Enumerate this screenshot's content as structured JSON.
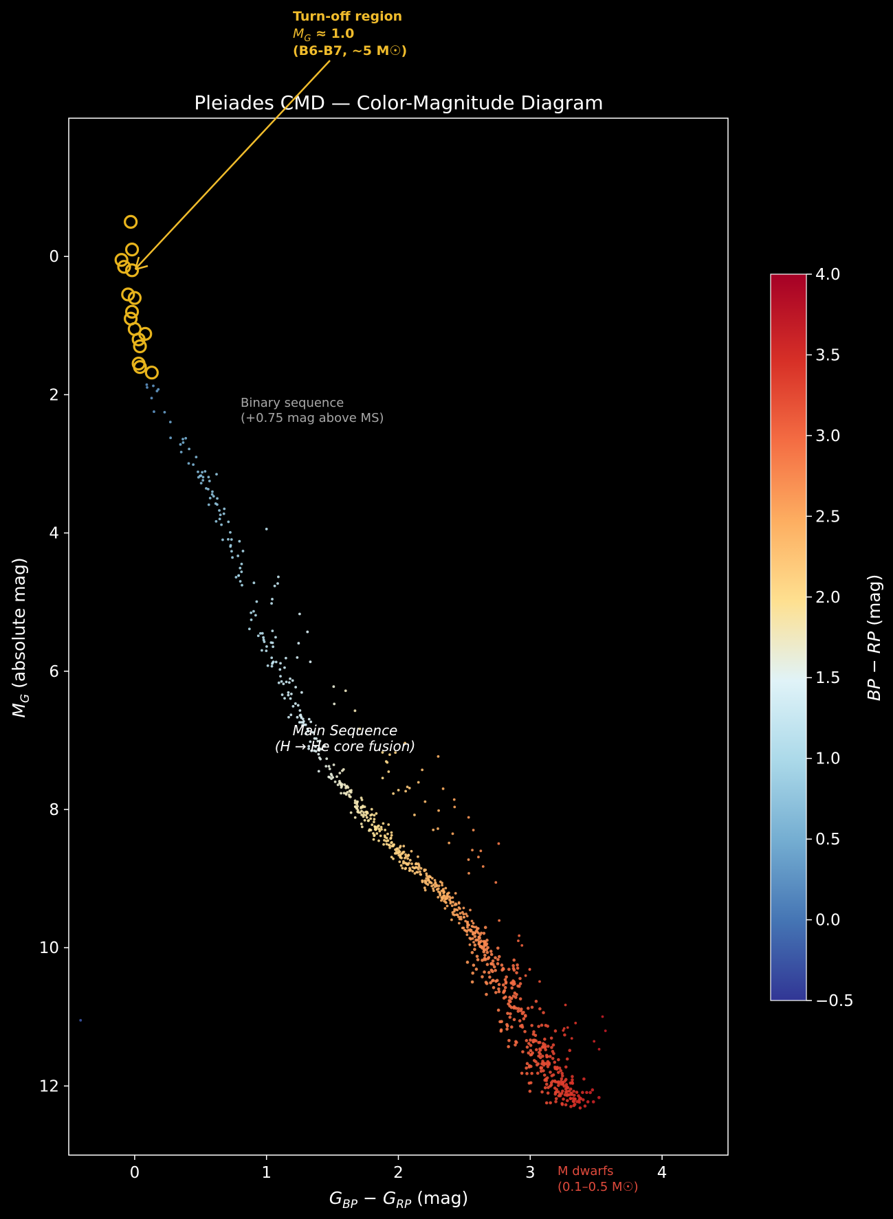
{
  "chart_data": {
    "type": "scatter",
    "title": "Pleiades CMD — Color-Magnitude Diagram",
    "xlabel": "G_BP − G_RP (mag)",
    "ylabel": "M_G (absolute mag)",
    "xlim": [
      -0.5,
      4.5
    ],
    "ylim": [
      13.0,
      -2.0
    ],
    "y_inverted": true,
    "xticks": [
      "0",
      "1",
      "2",
      "3",
      "4"
    ],
    "yticks": [
      "0",
      "2",
      "4",
      "6",
      "8",
      "10",
      "12"
    ],
    "colorbar": {
      "label": "BP − RP (mag)",
      "range": [
        -0.5,
        4.0
      ],
      "ticks": [
        "−0.5",
        "0.0",
        "0.5",
        "1.0",
        "1.5",
        "2.0",
        "2.5",
        "3.0",
        "3.5",
        "4.0"
      ],
      "colormap": "RdYlBu_r",
      "stops": [
        "#313695",
        "#4575b4",
        "#74add1",
        "#abd9e9",
        "#e0f3f8",
        "#fee090",
        "#fdae61",
        "#f46d43",
        "#d73027",
        "#a50026"
      ]
    },
    "turnoff_stars": [
      [
        -0.03,
        -0.5
      ],
      [
        -0.02,
        0.2
      ],
      [
        -0.08,
        0.15
      ],
      [
        -0.1,
        0.05
      ],
      [
        -0.02,
        -0.1
      ],
      [
        -0.05,
        0.55
      ],
      [
        0.0,
        0.6
      ],
      [
        -0.02,
        0.8
      ],
      [
        -0.03,
        0.9
      ],
      [
        0.0,
        1.05
      ],
      [
        0.08,
        1.12
      ],
      [
        0.03,
        1.2
      ],
      [
        0.04,
        1.3
      ],
      [
        0.03,
        1.55
      ],
      [
        0.04,
        1.6
      ],
      [
        0.13,
        1.68
      ]
    ],
    "main_sequence": [
      [
        0.08,
        1.85
      ],
      [
        0.2,
        2.0
      ],
      [
        0.22,
        2.15
      ],
      [
        0.26,
        2.3
      ],
      [
        0.3,
        2.55
      ],
      [
        0.35,
        2.65
      ],
      [
        0.45,
        2.95
      ],
      [
        0.52,
        3.15
      ],
      [
        0.6,
        3.45
      ],
      [
        0.65,
        3.7
      ],
      [
        0.7,
        3.9
      ],
      [
        0.74,
        4.15
      ],
      [
        0.8,
        4.5
      ],
      [
        0.85,
        4.75
      ],
      [
        0.9,
        5.1
      ],
      [
        0.97,
        5.45
      ],
      [
        1.05,
        5.85
      ],
      [
        1.15,
        6.25
      ],
      [
        1.25,
        6.65
      ],
      [
        1.35,
        7.0
      ],
      [
        1.45,
        7.3
      ],
      [
        1.58,
        7.65
      ],
      [
        1.7,
        7.95
      ],
      [
        1.82,
        8.25
      ],
      [
        1.95,
        8.5
      ],
      [
        2.1,
        8.8
      ],
      [
        2.25,
        9.05
      ],
      [
        2.4,
        9.35
      ],
      [
        2.5,
        9.6
      ],
      [
        2.6,
        9.85
      ],
      [
        2.7,
        10.15
      ],
      [
        2.78,
        10.45
      ],
      [
        2.85,
        10.75
      ],
      [
        2.92,
        11.05
      ],
      [
        3.0,
        11.35
      ],
      [
        3.08,
        11.6
      ],
      [
        3.16,
        11.85
      ],
      [
        3.25,
        12.05
      ],
      [
        3.35,
        12.25
      ]
    ],
    "annotations": {
      "turnoff_title": "Turn-off region",
      "turnoff_mag": "≈ 1.0",
      "turnoff_type": "(B6-B7, ~5 M☉)",
      "binary_line1": "Binary sequence",
      "binary_line2": "(+0.75 mag above MS)",
      "ms_line1": "Main Sequence",
      "ms_line2": "(H → He core fusion)",
      "mdwarf_line1": "M dwarfs",
      "mdwarf_line2": "(0.1–0.5 M☉)"
    }
  }
}
